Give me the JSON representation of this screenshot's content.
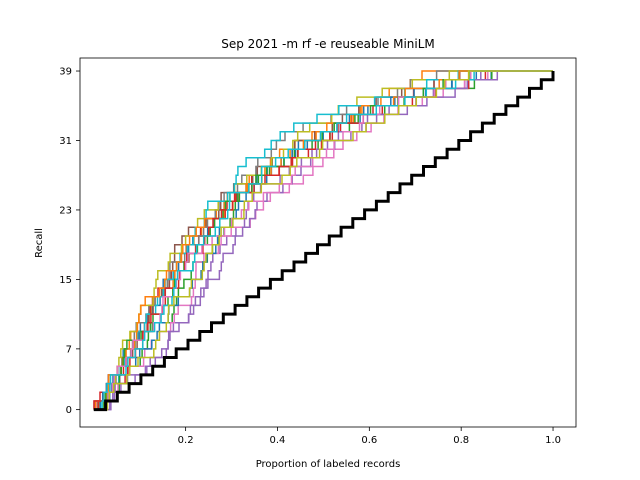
{
  "chart_data": {
    "type": "line",
    "title": "Sep 2021 -m rf -e reuseable MiniLM",
    "xlabel": "Proportion of labeled records",
    "ylabel": "Recall",
    "xlim": [
      -0.03,
      1.05
    ],
    "ylim": [
      -2,
      40.5
    ],
    "x_ticks": [
      0.2,
      0.4,
      0.6,
      0.8,
      1.0
    ],
    "x_tick_labels": [
      "0.2",
      "0.4",
      "0.6",
      "0.8",
      "1.0"
    ],
    "y_ticks": [
      0,
      7,
      15,
      23,
      31,
      39
    ],
    "y_tick_labels": [
      "0",
      "7",
      "15",
      "23",
      "31",
      "39"
    ],
    "grid": false,
    "total_relevant": 39,
    "baseline": {
      "color": "#000000",
      "start_x": 0.0,
      "end_x": 1.0,
      "kind": "random"
    },
    "series": [
      {
        "color": "#1f77b4",
        "anchors": [
          [
            0.0,
            0
          ],
          [
            0.1,
            10
          ],
          [
            0.2,
            19
          ],
          [
            0.3,
            25
          ],
          [
            0.45,
            31
          ],
          [
            0.6,
            35
          ],
          [
            0.85,
            39
          ]
        ]
      },
      {
        "color": "#ff7f0e",
        "anchors": [
          [
            0.0,
            0
          ],
          [
            0.08,
            8
          ],
          [
            0.18,
            17
          ],
          [
            0.28,
            24
          ],
          [
            0.4,
            30
          ],
          [
            0.55,
            34
          ],
          [
            0.72,
            39
          ]
        ]
      },
      {
        "color": "#2ca02c",
        "anchors": [
          [
            0.0,
            0
          ],
          [
            0.12,
            8
          ],
          [
            0.22,
            17
          ],
          [
            0.32,
            25
          ],
          [
            0.48,
            31
          ],
          [
            0.62,
            35
          ],
          [
            0.88,
            39
          ]
        ]
      },
      {
        "color": "#d62728",
        "anchors": [
          [
            0.0,
            0
          ],
          [
            0.1,
            10
          ],
          [
            0.2,
            18
          ],
          [
            0.3,
            25
          ],
          [
            0.45,
            30
          ],
          [
            0.6,
            35
          ],
          [
            0.8,
            39
          ]
        ]
      },
      {
        "color": "#9467bd",
        "anchors": [
          [
            0.0,
            0
          ],
          [
            0.15,
            7
          ],
          [
            0.25,
            17
          ],
          [
            0.35,
            25
          ],
          [
            0.5,
            31
          ],
          [
            0.65,
            35
          ],
          [
            0.85,
            39
          ]
        ]
      },
      {
        "color": "#8c564b",
        "anchors": [
          [
            0.0,
            0
          ],
          [
            0.09,
            9
          ],
          [
            0.19,
            19
          ],
          [
            0.29,
            25
          ],
          [
            0.44,
            31
          ],
          [
            0.58,
            35
          ],
          [
            0.78,
            39
          ]
        ]
      },
      {
        "color": "#e377c2",
        "anchors": [
          [
            0.0,
            0
          ],
          [
            0.14,
            8
          ],
          [
            0.24,
            17
          ],
          [
            0.36,
            24
          ],
          [
            0.52,
            30
          ],
          [
            0.66,
            35
          ],
          [
            0.85,
            39
          ]
        ]
      },
      {
        "color": "#7f7f7f",
        "anchors": [
          [
            0.0,
            0
          ],
          [
            0.1,
            11
          ],
          [
            0.2,
            19
          ],
          [
            0.3,
            26
          ],
          [
            0.42,
            32
          ],
          [
            0.56,
            35
          ],
          [
            0.74,
            39
          ]
        ]
      },
      {
        "color": "#bcbd22",
        "anchors": [
          [
            0.0,
            0
          ],
          [
            0.08,
            10
          ],
          [
            0.18,
            19
          ],
          [
            0.28,
            25
          ],
          [
            0.43,
            31
          ],
          [
            0.57,
            36
          ],
          [
            0.77,
            39
          ]
        ]
      },
      {
        "color": "#17becf",
        "anchors": [
          [
            0.0,
            0
          ],
          [
            0.09,
            9
          ],
          [
            0.19,
            19
          ],
          [
            0.29,
            26
          ],
          [
            0.39,
            32
          ],
          [
            0.55,
            35
          ],
          [
            0.8,
            39
          ]
        ]
      },
      {
        "color": "#1f77b4",
        "anchors": [
          [
            0.0,
            0
          ],
          [
            0.13,
            9
          ],
          [
            0.23,
            17
          ],
          [
            0.33,
            25
          ],
          [
            0.47,
            31
          ],
          [
            0.61,
            35
          ],
          [
            0.82,
            39
          ]
        ]
      },
      {
        "color": "#ff7f0e",
        "anchors": [
          [
            0.0,
            0
          ],
          [
            0.09,
            10
          ],
          [
            0.19,
            19
          ],
          [
            0.31,
            25
          ],
          [
            0.44,
            31
          ],
          [
            0.59,
            35
          ],
          [
            0.79,
            39
          ]
        ]
      },
      {
        "color": "#2ca02c",
        "anchors": [
          [
            0.0,
            0
          ],
          [
            0.1,
            9
          ],
          [
            0.21,
            18
          ],
          [
            0.31,
            25
          ],
          [
            0.46,
            31
          ],
          [
            0.6,
            35
          ],
          [
            0.83,
            39
          ]
        ]
      },
      {
        "color": "#d62728",
        "anchors": [
          [
            0.0,
            0
          ],
          [
            0.11,
            8
          ],
          [
            0.21,
            18
          ],
          [
            0.32,
            25
          ],
          [
            0.47,
            31
          ],
          [
            0.62,
            35
          ],
          [
            0.86,
            39
          ]
        ]
      },
      {
        "color": "#9467bd",
        "anchors": [
          [
            0.0,
            0
          ],
          [
            0.16,
            8
          ],
          [
            0.27,
            17
          ],
          [
            0.37,
            25
          ],
          [
            0.52,
            31
          ],
          [
            0.67,
            35
          ],
          [
            0.87,
            39
          ]
        ]
      },
      {
        "color": "#e377c2",
        "anchors": [
          [
            0.0,
            0
          ],
          [
            0.12,
            10
          ],
          [
            0.22,
            18
          ],
          [
            0.34,
            24
          ],
          [
            0.49,
            30
          ],
          [
            0.63,
            35
          ],
          [
            0.83,
            39
          ]
        ]
      },
      {
        "color": "#17becf",
        "anchors": [
          [
            0.0,
            0
          ],
          [
            0.11,
            9
          ],
          [
            0.21,
            18
          ],
          [
            0.31,
            25
          ],
          [
            0.45,
            31
          ],
          [
            0.6,
            35
          ],
          [
            0.84,
            39
          ]
        ]
      },
      {
        "color": "#bcbd22",
        "anchors": [
          [
            0.0,
            0
          ],
          [
            0.13,
            8
          ],
          [
            0.23,
            17
          ],
          [
            0.33,
            24
          ],
          [
            0.48,
            30
          ],
          [
            0.62,
            34
          ],
          [
            0.81,
            39
          ]
        ]
      }
    ]
  }
}
